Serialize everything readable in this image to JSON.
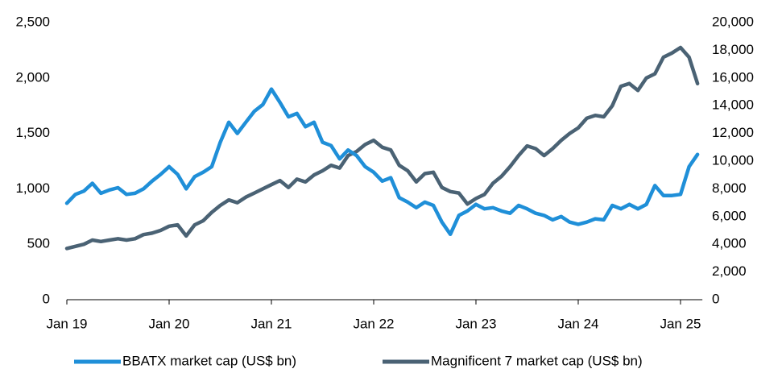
{
  "chart_data": {
    "type": "line",
    "x": [
      "Jan 19",
      "Feb 19",
      "Mar 19",
      "Apr 19",
      "May 19",
      "Jun 19",
      "Jul 19",
      "Aug 19",
      "Sep 19",
      "Oct 19",
      "Nov 19",
      "Dec 19",
      "Jan 20",
      "Feb 20",
      "Mar 20",
      "Apr 20",
      "May 20",
      "Jun 20",
      "Jul 20",
      "Aug 20",
      "Sep 20",
      "Oct 20",
      "Nov 20",
      "Dec 20",
      "Jan 21",
      "Feb 21",
      "Mar 21",
      "Apr 21",
      "May 21",
      "Jun 21",
      "Jul 21",
      "Aug 21",
      "Sep 21",
      "Oct 21",
      "Nov 21",
      "Dec 21",
      "Jan 22",
      "Feb 22",
      "Mar 22",
      "Apr 22",
      "May 22",
      "Jun 22",
      "Jul 22",
      "Aug 22",
      "Sep 22",
      "Oct 22",
      "Nov 22",
      "Dec 22",
      "Jan 23",
      "Feb 23",
      "Mar 23",
      "Apr 23",
      "May 23",
      "Jun 23",
      "Jul 23",
      "Aug 23",
      "Sep 23",
      "Oct 23",
      "Nov 23",
      "Dec 23",
      "Jan 24",
      "Feb 24",
      "Mar 24",
      "Apr 24",
      "May 24",
      "Jun 24",
      "Jul 24",
      "Aug 24",
      "Sep 24",
      "Oct 24",
      "Nov 24",
      "Dec 24",
      "Jan 25",
      "Feb 25",
      "Mar 25"
    ],
    "xticks": [
      "Jan 19",
      "Jan 20",
      "Jan 21",
      "Jan 22",
      "Jan 23",
      "Jan 24",
      "Jan 25"
    ],
    "series": [
      {
        "name": "BBATX market cap (US$ bn)",
        "color": "#1f8fd8",
        "axis": "y",
        "values": [
          870,
          950,
          980,
          1050,
          960,
          990,
          1010,
          950,
          960,
          1000,
          1070,
          1130,
          1200,
          1130,
          1000,
          1110,
          1150,
          1200,
          1420,
          1600,
          1500,
          1600,
          1700,
          1760,
          1900,
          1780,
          1650,
          1680,
          1560,
          1600,
          1420,
          1390,
          1270,
          1350,
          1300,
          1200,
          1150,
          1070,
          1100,
          920,
          880,
          830,
          880,
          850,
          700,
          590,
          760,
          800,
          860,
          820,
          830,
          800,
          780,
          850,
          820,
          780,
          760,
          720,
          750,
          700,
          680,
          700,
          730,
          720,
          850,
          820,
          860,
          820,
          860,
          1030,
          940,
          940,
          950,
          1200,
          1310
        ]
      },
      {
        "name": "Magnificent 7 market cap (US$ bn)",
        "color": "#4a6274",
        "axis": "y2",
        "values": [
          3700,
          3850,
          4000,
          4300,
          4200,
          4300,
          4400,
          4300,
          4400,
          4700,
          4800,
          5000,
          5300,
          5400,
          4600,
          5400,
          5700,
          6300,
          6800,
          7200,
          7000,
          7400,
          7700,
          8000,
          8300,
          8600,
          8100,
          8700,
          8500,
          9000,
          9300,
          9700,
          9500,
          10400,
          10700,
          11200,
          11500,
          11000,
          10800,
          9700,
          9300,
          8500,
          9100,
          9200,
          8100,
          7800,
          7700,
          6900,
          7300,
          7600,
          8400,
          8900,
          9600,
          10400,
          11100,
          10900,
          10400,
          10900,
          11500,
          12000,
          12400,
          13100,
          13300,
          13200,
          14000,
          15400,
          15600,
          15100,
          16000,
          16300,
          17500,
          17800,
          18200,
          17500,
          15600
        ]
      }
    ],
    "ylim": [
      0,
      2500
    ],
    "yticks": [
      0,
      500,
      {
        "value": 1000,
        "label": "1,000"
      },
      {
        "value": 1500,
        "label": "1,500"
      },
      {
        "value": 2000,
        "label": "2,000"
      },
      {
        "value": 2500,
        "label": "2,500"
      }
    ],
    "y2lim": [
      0,
      20000
    ],
    "y2ticks": [
      0,
      {
        "value": 2000,
        "label": "2,000"
      },
      {
        "value": 4000,
        "label": "4,000"
      },
      {
        "value": 6000,
        "label": "6,000"
      },
      {
        "value": 8000,
        "label": "8,000"
      },
      {
        "value": 10000,
        "label": "10,000"
      },
      {
        "value": 12000,
        "label": "12,000"
      },
      {
        "value": 14000,
        "label": "14,000"
      },
      {
        "value": 16000,
        "label": "16,000"
      },
      {
        "value": 18000,
        "label": "18,000"
      },
      {
        "value": 20000,
        "label": "20,000"
      }
    ],
    "legend": "bottom"
  }
}
